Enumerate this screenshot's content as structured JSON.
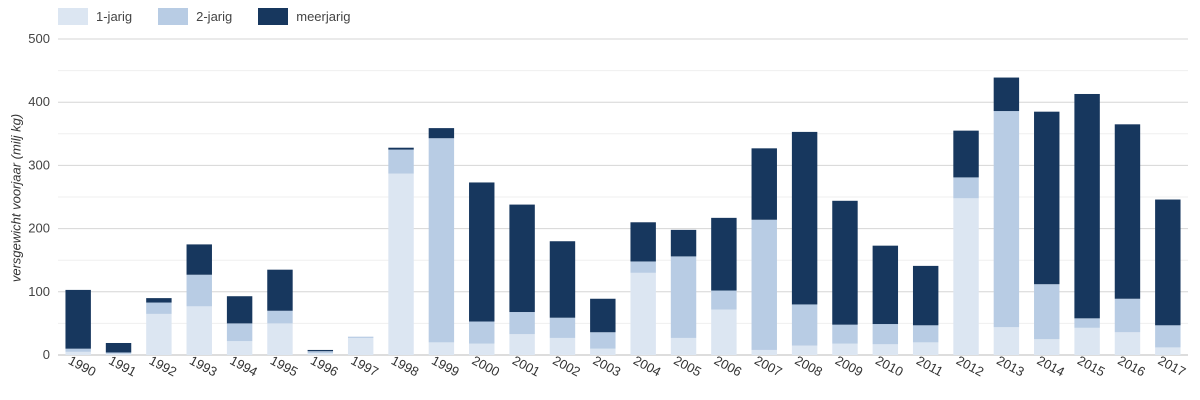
{
  "chart_data": {
    "type": "bar",
    "stacked": true,
    "categories": [
      "1990",
      "1991",
      "1992",
      "1993",
      "1994",
      "1995",
      "1996",
      "1997",
      "1998",
      "1999",
      "2000",
      "2001",
      "2002",
      "2003",
      "2004",
      "2005",
      "2006",
      "2007",
      "2008",
      "2009",
      "2010",
      "2011",
      "2012",
      "2013",
      "2014",
      "2015",
      "2016",
      "2017"
    ],
    "series": [
      {
        "name": "1-jarig",
        "color": "#dce6f2",
        "values": [
          5,
          2,
          65,
          77,
          22,
          50,
          3,
          27,
          287,
          20,
          18,
          33,
          27,
          10,
          130,
          27,
          72,
          8,
          15,
          18,
          17,
          20,
          248,
          44,
          25,
          43,
          36,
          12
        ]
      },
      {
        "name": "2-jarig",
        "color": "#b8cce4",
        "values": [
          5,
          2,
          18,
          50,
          28,
          20,
          3,
          2,
          38,
          323,
          35,
          35,
          32,
          26,
          18,
          129,
          30,
          206,
          65,
          30,
          32,
          27,
          33,
          342,
          87,
          15,
          53,
          35
        ]
      },
      {
        "name": "meerjarig",
        "color": "#17375e",
        "values": [
          93,
          15,
          7,
          48,
          43,
          65,
          2,
          0,
          3,
          16,
          220,
          170,
          121,
          53,
          62,
          42,
          115,
          113,
          273,
          196,
          124,
          94,
          74,
          53,
          273,
          355,
          276,
          199
        ]
      }
    ],
    "ylabel": "versgewicht voorjaar (milj kg)",
    "xlabel": "",
    "ylim": [
      0,
      500
    ],
    "yticks": [
      0,
      100,
      200,
      300,
      400,
      500
    ],
    "grid": true,
    "legend_position": "top-left"
  }
}
